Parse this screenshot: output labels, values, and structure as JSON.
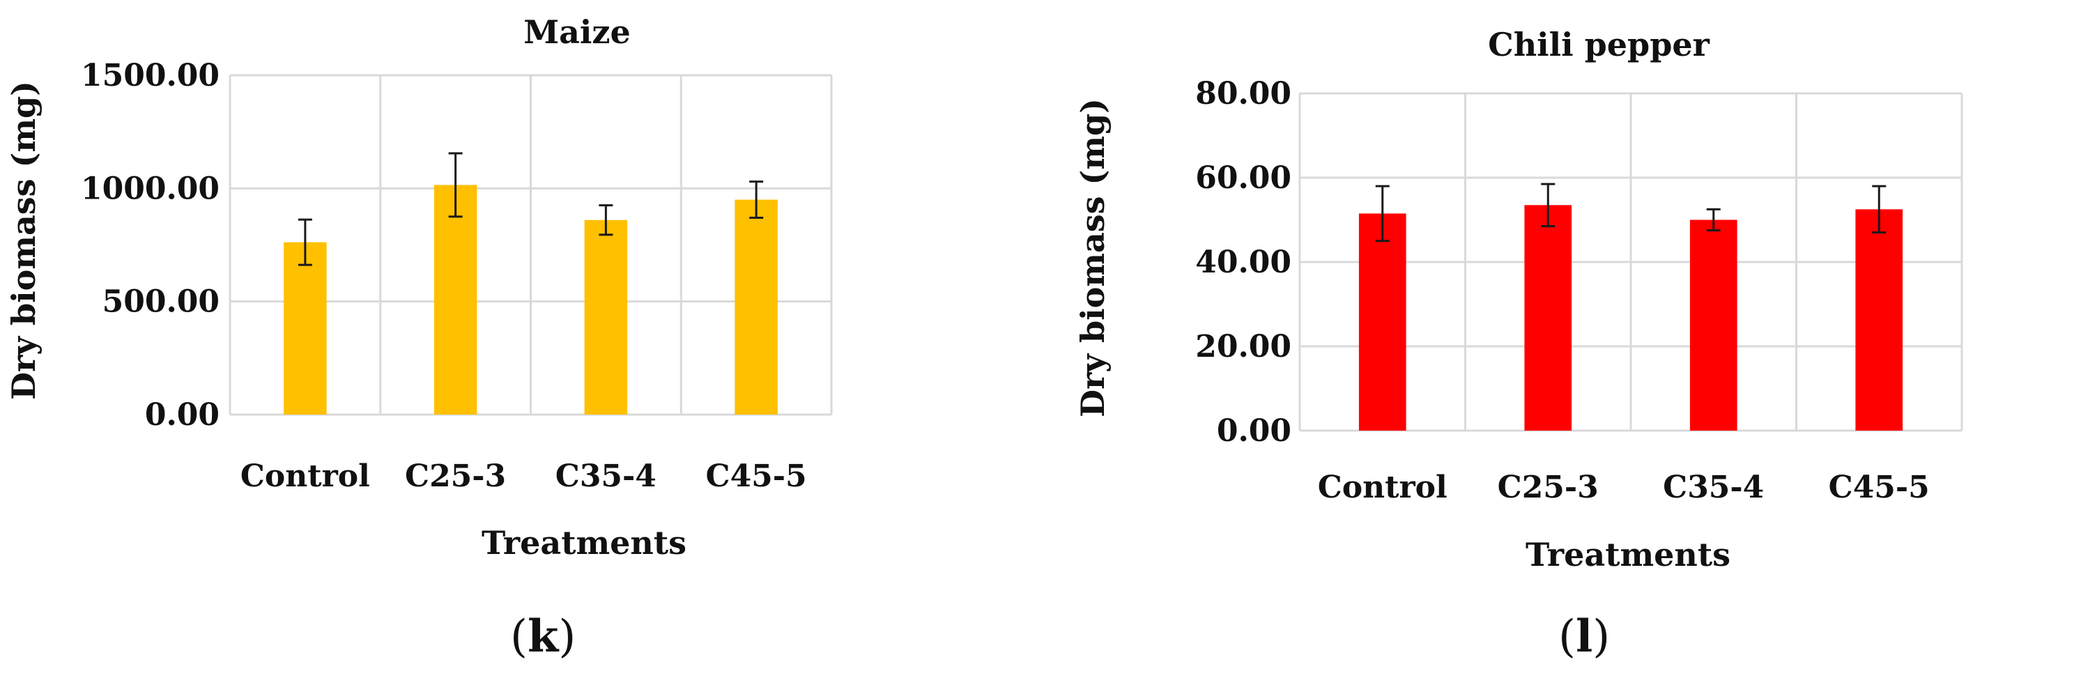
{
  "chart_data": [
    {
      "type": "bar",
      "panel": "(k)",
      "panel_letter": "k",
      "title": "Maize",
      "categories": [
        "Control",
        "C25-3",
        "C35-4",
        "C45-5"
      ],
      "values": [
        762,
        1015,
        860,
        950
      ],
      "errors": [
        100,
        140,
        65,
        80
      ],
      "color": "#FFC000",
      "xlabel": "Treatments",
      "ylabel": "Dry biomass (mg)",
      "ylim": [
        0,
        1500
      ],
      "yticks": [
        0,
        500,
        1000,
        1500
      ],
      "ytick_labels": [
        "0.00",
        "500.00",
        "1000.00",
        "1500.00"
      ],
      "grid": true
    },
    {
      "type": "bar",
      "panel": "(l)",
      "panel_letter": "l",
      "title": "Chili pepper",
      "categories": [
        "Control",
        "C25-3",
        "C35-4",
        "C45-5"
      ],
      "values": [
        51.5,
        53.5,
        50.0,
        52.5
      ],
      "errors": [
        6.5,
        5.0,
        2.5,
        5.5
      ],
      "color": "#FF0000",
      "xlabel": "Treatments",
      "ylabel": "Dry biomass (mg)",
      "ylim": [
        0,
        80
      ],
      "yticks": [
        0,
        20,
        40,
        60,
        80
      ],
      "ytick_labels": [
        "0.00",
        "20.00",
        "40.00",
        "60.00",
        "80.00"
      ],
      "grid": true
    }
  ]
}
